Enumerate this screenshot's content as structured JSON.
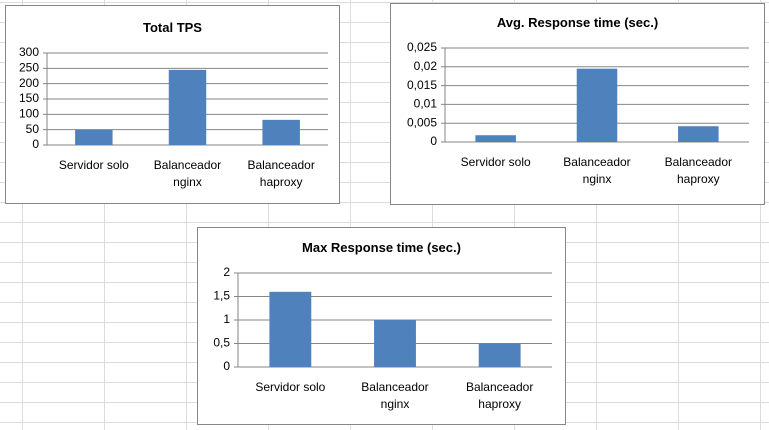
{
  "chart_data": [
    {
      "type": "bar",
      "title": "Total TPS",
      "categories": [
        "Servidor solo",
        "Balanceador nginx",
        "Balanceador haproxy"
      ],
      "values": [
        50,
        245,
        82
      ],
      "color": "#4f81bd",
      "ylim": [
        0,
        300
      ],
      "yticks": [
        0,
        50,
        100,
        150,
        200,
        250,
        300
      ],
      "grid": true
    },
    {
      "type": "bar",
      "title": "Avg. Response time (sec.)",
      "categories": [
        "Servidor solo",
        "Balanceador nginx",
        "Balanceador haproxy"
      ],
      "values": [
        0.0018,
        0.0195,
        0.0042
      ],
      "color": "#4f81bd",
      "ylim": [
        0,
        0.025
      ],
      "yticks": [
        0,
        {
          "value": 0.005,
          "label": "0,005"
        },
        {
          "value": 0.01,
          "label": "0,01"
        },
        {
          "value": 0.015,
          "label": "0,015"
        },
        {
          "value": 0.02,
          "label": "0,02"
        },
        {
          "value": 0.025,
          "label": "0,025"
        }
      ],
      "grid": true
    },
    {
      "type": "bar",
      "title": "Max Response time (sec.)",
      "categories": [
        "Servidor solo",
        "Balanceador nginx",
        "Balanceador haproxy"
      ],
      "values": [
        1.6,
        1.0,
        0.5
      ],
      "color": "#4f81bd",
      "ylim": [
        0,
        2
      ],
      "yticks": [
        0,
        {
          "value": 0.5,
          "label": "0,5"
        },
        1,
        {
          "value": 1.5,
          "label": "1,5"
        },
        2
      ],
      "grid": true
    }
  ]
}
